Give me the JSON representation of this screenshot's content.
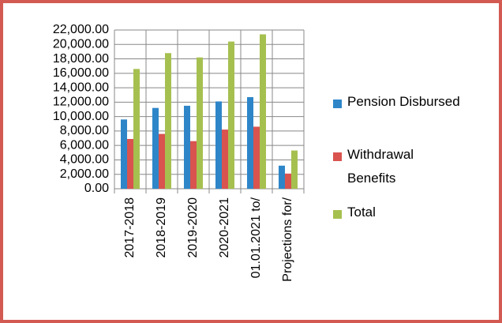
{
  "chart_data": {
    "type": "bar",
    "categories": [
      "2017-2018",
      "2018-2019",
      "2019-2020",
      "2020-2021",
      "01.01.2021 to/",
      "Projections for/"
    ],
    "series": [
      {
        "name": "Pension Disbursed",
        "color": "#2e86c8",
        "values": [
          9600,
          11200,
          11500,
          12100,
          12700,
          3200
        ]
      },
      {
        "name": "Withdrawal Benefits",
        "color": "#d9534f",
        "values": [
          6900,
          7600,
          6600,
          8200,
          8600,
          2100
        ]
      },
      {
        "name": "Total",
        "color": "#a6c050",
        "values": [
          16600,
          18800,
          18200,
          20400,
          21400,
          5300
        ]
      }
    ],
    "ylim": [
      0,
      22000
    ],
    "yticks": [
      {
        "value": 0,
        "label": "0.00"
      },
      {
        "value": 2000,
        "label": "2,000.00"
      },
      {
        "value": 4000,
        "label": "4,000.00"
      },
      {
        "value": 6000,
        "label": "6,000.00"
      },
      {
        "value": 8000,
        "label": "8,000.00"
      },
      {
        "value": 10000,
        "label": "10,000.00"
      },
      {
        "value": 12000,
        "label": "12,000.00"
      },
      {
        "value": 14000,
        "label": "14,000.00"
      },
      {
        "value": 16000,
        "label": "16,000.00"
      },
      {
        "value": 18000,
        "label": "18,000.00"
      },
      {
        "value": 20000,
        "label": "20,000.00"
      },
      {
        "value": 22000,
        "label": "22,000.00"
      }
    ],
    "grid": true,
    "legend": "right"
  }
}
